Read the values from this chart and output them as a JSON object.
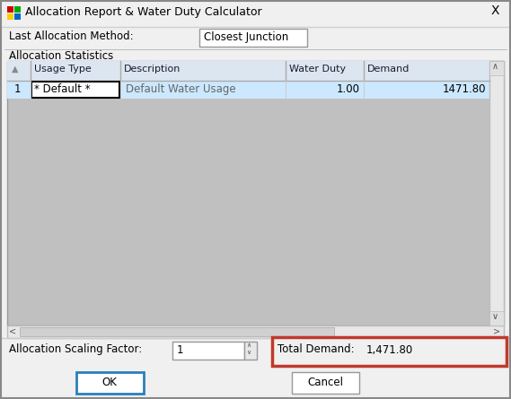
{
  "title": "Allocation Report & Water Duty Calculator",
  "bg_color": "#f0f0f0",
  "last_alloc_label": "Last Allocation Method:",
  "last_alloc_value": "Closest Junction",
  "alloc_stats_label": "Allocation Statistics",
  "table_row_num": "1",
  "table_row_usage": "* Default *",
  "table_row_desc": "Default Water Usage",
  "table_row_duty": "1.00",
  "table_row_demand": "1471.80",
  "alloc_scaling_label": "Allocation Scaling Factor:",
  "alloc_scaling_value": "1",
  "total_demand_label": "Total Demand:",
  "total_demand_value": "1,471.80",
  "ok_label": "OK",
  "cancel_label": "Cancel",
  "header_bg": "#dce6f1",
  "row_selected_bg": "#cce8ff",
  "table_bg": "#c0c0c0",
  "white": "#ffffff",
  "dialog_bg": "#f0f0f0",
  "orange_border": "#c0392b",
  "ok_border": "#2980b9",
  "text_dark": "#000000",
  "text_gray": "#666666",
  "icon_red": "#cc0000",
  "icon_yellow": "#ffcc00",
  "icon_green": "#00aa00",
  "icon_blue": "#0066cc",
  "scrollbar_bg": "#e8e8e8",
  "scrollbar_border": "#bbbbbb",
  "win_border": "#999999",
  "header_text": "#1a1a2e",
  "title_bar_bottom_line": "#d0d0d0"
}
